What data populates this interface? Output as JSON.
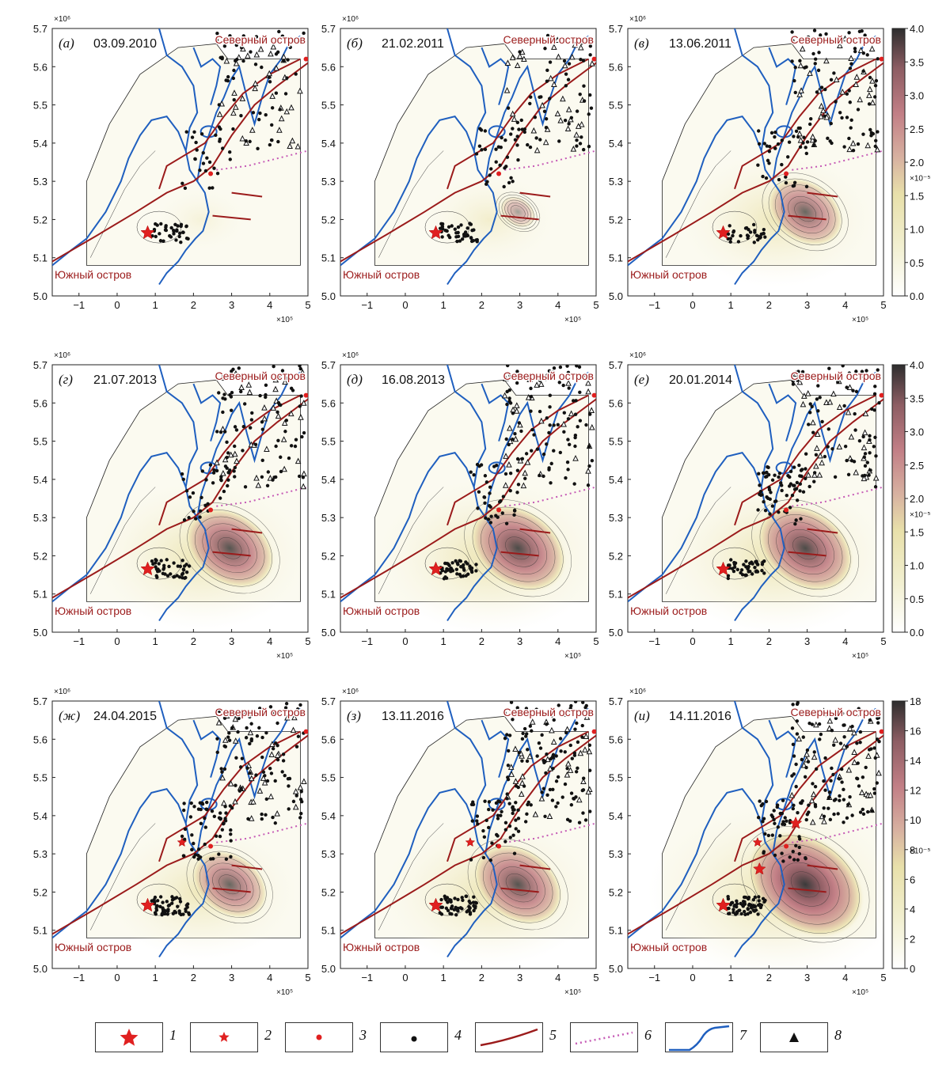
{
  "colors": {
    "coast": "#1f5fbf",
    "fault": "#9b1b1b",
    "subduction": "#c65bb6",
    "star": "#e02020",
    "dot": "#111111",
    "triangle": "#111111",
    "colormap": [
      "#ffffff",
      "#f2f0d2",
      "#e8e0aa",
      "#d7b0a0",
      "#c27f86",
      "#8d5d63",
      "#3a3a3a"
    ]
  },
  "labels": {
    "north_island": "Северный остров",
    "south_island": "Южный остров",
    "exponent_top": "×10⁶",
    "exponent_bottom": "×10⁵"
  },
  "axes": {
    "x_ticks": [
      "−1",
      "0",
      "1",
      "2",
      "3",
      "4",
      "5"
    ],
    "y_ticks": [
      "5.7",
      "5.6",
      "5.5",
      "5.4",
      "5.3",
      "5.2",
      "5.1",
      "5.0"
    ]
  },
  "panels": [
    {
      "letter": "(а)",
      "date": "03.09.2010",
      "level": 0.05
    },
    {
      "letter": "(б)",
      "date": "21.02.2011",
      "level": 0.25
    },
    {
      "letter": "(в)",
      "date": "13.06.2011",
      "level": 0.55
    },
    {
      "letter": "(г)",
      "date": "21.07.2013",
      "level": 0.65
    },
    {
      "letter": "(д)",
      "date": "16.08.2013",
      "level": 0.7
    },
    {
      "letter": "(е)",
      "date": "20.01.2014",
      "level": 0.7
    },
    {
      "letter": "(ж)",
      "date": "24.04.2015",
      "level": 0.55
    },
    {
      "letter": "(з)",
      "date": "13.11.2016",
      "level": 0.65
    },
    {
      "letter": "(и)",
      "date": "14.11.2016",
      "level": 0.85
    }
  ],
  "colorbars": [
    {
      "ticks": [
        "4.0",
        "3.5",
        "3.0",
        "2.5",
        "2.0",
        "1.5",
        "1.0",
        "0.5",
        "0.0"
      ],
      "exponent": "×10⁻⁵"
    },
    {
      "ticks": [
        "4.0",
        "3.5",
        "3.0",
        "2.5",
        "2.0",
        "1.5",
        "1.0",
        "0.5",
        "0.0"
      ],
      "exponent": "×10⁻⁵"
    },
    {
      "ticks": [
        "18",
        "16",
        "14",
        "12",
        "10",
        "8",
        "6",
        "4",
        "2",
        "0"
      ],
      "exponent": "×10⁻⁵"
    }
  ],
  "legend": [
    "1",
    "2",
    "3",
    "4",
    "5",
    "6",
    "7",
    "8"
  ]
}
